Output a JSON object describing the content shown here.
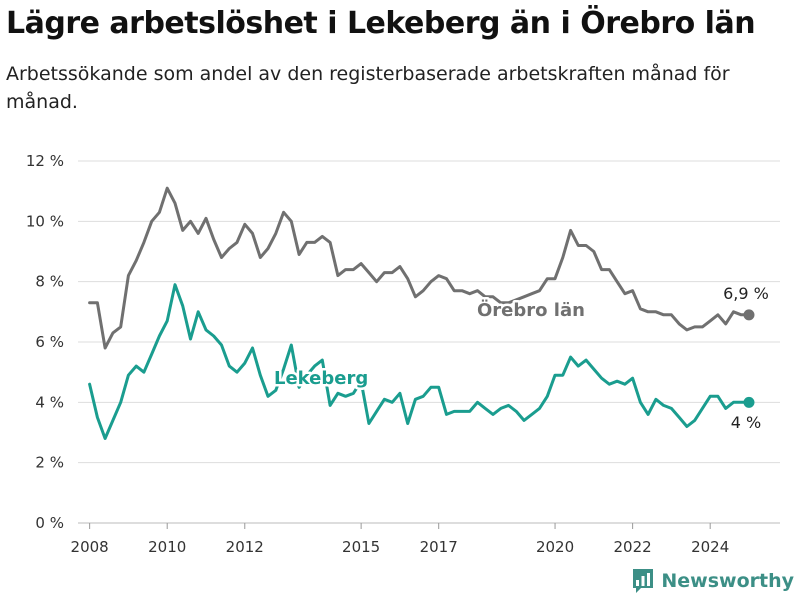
{
  "title": "Lägre arbetslöshet i Lekeberg än i Örebro län",
  "subtitle": "Arbetssökande som andel av den registerbaserade arbetskraften månad för månad.",
  "brand": "Newsworthy",
  "colors": {
    "county": "#707070",
    "municipality": "#1a9d8f",
    "grid": "#dddddd",
    "brand": "#3c8f86"
  },
  "chart_data": {
    "type": "line",
    "title": "Lägre arbetslöshet i Lekeberg än i Örebro län",
    "subtitle": "Arbetssökande som andel av den registerbaserade arbetskraften månad för månad.",
    "xlabel": "",
    "ylabel": "",
    "ylim": [
      0,
      12
    ],
    "yticks": [
      0,
      2,
      4,
      6,
      8,
      10,
      12
    ],
    "ytick_labels": [
      "0 %",
      "2 %",
      "4 %",
      "6 %",
      "8 %",
      "10 %",
      "12 %"
    ],
    "xlim": [
      2007.7,
      2025.8
    ],
    "xticks": [
      2008,
      2010,
      2012,
      2015,
      2017,
      2020,
      2022,
      2024
    ],
    "xtick_labels": [
      "2008",
      "2010",
      "2012",
      "2015",
      "2017",
      "2020",
      "2022",
      "2024"
    ],
    "grid": true,
    "legend": "inline labels",
    "series": [
      {
        "name": "Örebro län",
        "end_label": "6,9 %",
        "x": [
          2008.0,
          2008.2,
          2008.4,
          2008.6,
          2008.8,
          2009.0,
          2009.2,
          2009.4,
          2009.6,
          2009.8,
          2010.0,
          2010.2,
          2010.4,
          2010.6,
          2010.8,
          2011.0,
          2011.2,
          2011.4,
          2011.6,
          2011.8,
          2012.0,
          2012.2,
          2012.4,
          2012.6,
          2012.8,
          2013.0,
          2013.2,
          2013.4,
          2013.6,
          2013.8,
          2014.0,
          2014.2,
          2014.4,
          2014.6,
          2014.8,
          2015.0,
          2015.2,
          2015.4,
          2015.6,
          2015.8,
          2016.0,
          2016.2,
          2016.4,
          2016.6,
          2016.8,
          2017.0,
          2017.2,
          2017.4,
          2017.6,
          2017.8,
          2018.0,
          2018.2,
          2018.4,
          2018.6,
          2018.8,
          2019.0,
          2019.2,
          2019.4,
          2019.6,
          2019.8,
          2020.0,
          2020.2,
          2020.4,
          2020.6,
          2020.8,
          2021.0,
          2021.2,
          2021.4,
          2021.6,
          2021.8,
          2022.0,
          2022.2,
          2022.4,
          2022.6,
          2022.8,
          2023.0,
          2023.2,
          2023.4,
          2023.6,
          2023.8,
          2024.0,
          2024.2,
          2024.4,
          2024.6,
          2024.8,
          2025.0
        ],
        "y": [
          7.3,
          7.3,
          5.8,
          6.3,
          6.5,
          8.2,
          8.7,
          9.3,
          10.0,
          10.3,
          11.1,
          10.6,
          9.7,
          10.0,
          9.6,
          10.1,
          9.4,
          8.8,
          9.1,
          9.3,
          9.9,
          9.6,
          8.8,
          9.1,
          9.6,
          10.3,
          10.0,
          8.9,
          9.3,
          9.3,
          9.5,
          9.3,
          8.2,
          8.4,
          8.4,
          8.6,
          8.3,
          8.0,
          8.3,
          8.3,
          8.5,
          8.1,
          7.5,
          7.7,
          8.0,
          8.2,
          8.1,
          7.7,
          7.7,
          7.6,
          7.7,
          7.5,
          7.5,
          7.3,
          7.3,
          7.4,
          7.5,
          7.6,
          7.7,
          8.1,
          8.1,
          8.8,
          9.7,
          9.2,
          9.2,
          9.0,
          8.4,
          8.4,
          8.0,
          7.6,
          7.7,
          7.1,
          7.0,
          7.0,
          6.9,
          6.9,
          6.6,
          6.4,
          6.5,
          6.5,
          6.7,
          6.9,
          6.6,
          7.0,
          6.9,
          6.9
        ]
      },
      {
        "name": "Lekeberg",
        "end_label": "4 %",
        "x": [
          2008.0,
          2008.2,
          2008.4,
          2008.6,
          2008.8,
          2009.0,
          2009.2,
          2009.4,
          2009.6,
          2009.8,
          2010.0,
          2010.2,
          2010.4,
          2010.6,
          2010.8,
          2011.0,
          2011.2,
          2011.4,
          2011.6,
          2011.8,
          2012.0,
          2012.2,
          2012.4,
          2012.6,
          2012.8,
          2013.0,
          2013.2,
          2013.4,
          2013.6,
          2013.8,
          2014.0,
          2014.2,
          2014.4,
          2014.6,
          2014.8,
          2015.0,
          2015.2,
          2015.4,
          2015.6,
          2015.8,
          2016.0,
          2016.2,
          2016.4,
          2016.6,
          2016.8,
          2017.0,
          2017.2,
          2017.4,
          2017.6,
          2017.8,
          2018.0,
          2018.2,
          2018.4,
          2018.6,
          2018.8,
          2019.0,
          2019.2,
          2019.4,
          2019.6,
          2019.8,
          2020.0,
          2020.2,
          2020.4,
          2020.6,
          2020.8,
          2021.0,
          2021.2,
          2021.4,
          2021.6,
          2021.8,
          2022.0,
          2022.2,
          2022.4,
          2022.6,
          2022.8,
          2023.0,
          2023.2,
          2023.4,
          2023.6,
          2023.8,
          2024.0,
          2024.2,
          2024.4,
          2024.6,
          2024.8,
          2025.0
        ],
        "y": [
          4.6,
          3.5,
          2.8,
          3.4,
          4.0,
          4.9,
          5.2,
          5.0,
          5.6,
          6.2,
          6.7,
          7.9,
          7.2,
          6.1,
          7.0,
          6.4,
          6.2,
          5.9,
          5.2,
          5.0,
          5.3,
          5.8,
          4.9,
          4.2,
          4.4,
          5.1,
          5.9,
          4.5,
          4.9,
          5.2,
          5.4,
          3.9,
          4.3,
          4.2,
          4.3,
          4.7,
          3.3,
          3.7,
          4.1,
          4.0,
          4.3,
          3.3,
          4.1,
          4.2,
          4.5,
          4.5,
          3.6,
          3.7,
          3.7,
          3.7,
          4.0,
          3.8,
          3.6,
          3.8,
          3.9,
          3.7,
          3.4,
          3.6,
          3.8,
          4.2,
          4.9,
          4.9,
          5.5,
          5.2,
          5.4,
          5.1,
          4.8,
          4.6,
          4.7,
          4.6,
          4.8,
          4.0,
          3.6,
          4.1,
          3.9,
          3.8,
          3.5,
          3.2,
          3.4,
          3.8,
          4.2,
          4.2,
          3.8,
          4.0,
          4.0,
          4.0
        ]
      }
    ]
  }
}
